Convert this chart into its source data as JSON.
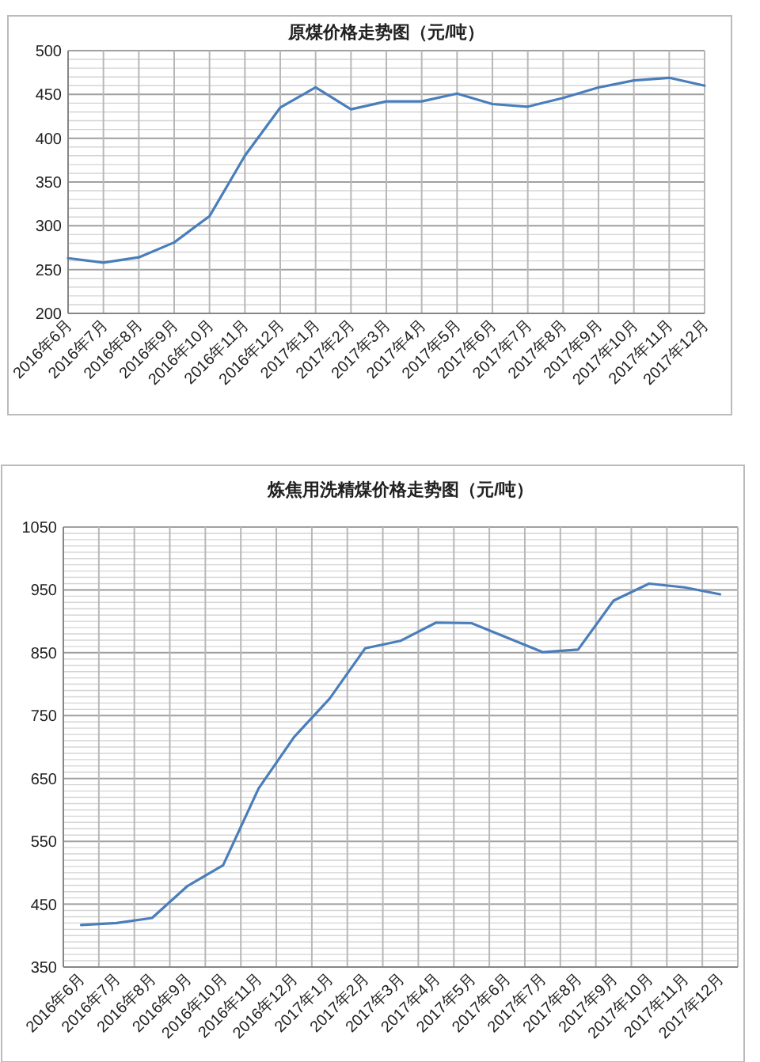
{
  "chart_data": [
    {
      "type": "line",
      "title": "原煤价格走势图（元/吨）",
      "categories": [
        "2016年6月",
        "2016年7月",
        "2016年8月",
        "2016年9月",
        "2016年10月",
        "2016年11月",
        "2016年12月",
        "2017年1月",
        "2017年2月",
        "2017年3月",
        "2017年4月",
        "2017年5月",
        "2017年6月",
        "2017年7月",
        "2017年8月",
        "2017年9月",
        "2017年10月",
        "2017年11月",
        "2017年12月"
      ],
      "series": [
        {
          "color": "#4a7ebb",
          "values": [
            263,
            258,
            264,
            281,
            311,
            380,
            435,
            458,
            433,
            442,
            442,
            451,
            439,
            436,
            446,
            458,
            466,
            469,
            460
          ]
        }
      ],
      "ylim": [
        200,
        500
      ],
      "yticks": [
        200,
        250,
        300,
        350,
        400,
        450,
        500
      ],
      "grid": true
    },
    {
      "type": "line",
      "title": "炼焦用洗精煤价格走势图（元/吨）",
      "categories": [
        "2016年6月",
        "2016年7月",
        "2016年8月",
        "2016年9月",
        "2016年10月",
        "2016年11月",
        "2016年12月",
        "2017年1月",
        "2017年2月",
        "2017年3月",
        "2017年4月",
        "2017年5月",
        "2017年6月",
        "2017年7月",
        "2017年8月",
        "2017年9月",
        "2017年10月",
        "2017年11月",
        "2017年12月"
      ],
      "series": [
        {
          "color": "#4a7ebb",
          "values": [
            417,
            420,
            428,
            479,
            512,
            634,
            716,
            777,
            857,
            869,
            898,
            897,
            874,
            851,
            855,
            933,
            960,
            954,
            943
          ]
        }
      ],
      "ylim": [
        350,
        1050
      ],
      "yticks": [
        350,
        450,
        550,
        650,
        750,
        850,
        950,
        1050
      ],
      "grid": true
    }
  ]
}
